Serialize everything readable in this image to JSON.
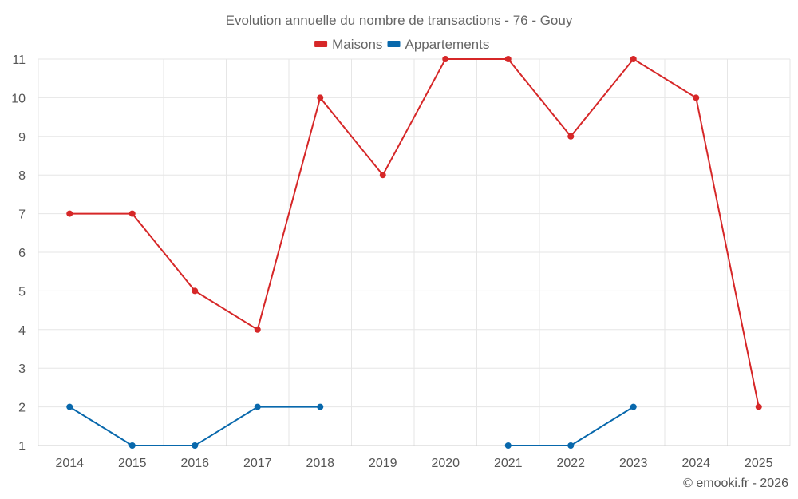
{
  "chart_data": {
    "type": "line",
    "title": "Evolution annuelle du nombre de transactions - 76 - Gouy",
    "categories": [
      "2014",
      "2015",
      "2016",
      "2017",
      "2018",
      "2019",
      "2020",
      "2021",
      "2022",
      "2023",
      "2024",
      "2025"
    ],
    "ylim": [
      1,
      11
    ],
    "yticks": [
      1,
      2,
      3,
      4,
      5,
      6,
      7,
      8,
      9,
      10,
      11
    ],
    "grid": true,
    "legend_position": "top-center",
    "series": [
      {
        "name": "Maisons",
        "color": "#d62728",
        "values": [
          7,
          7,
          5,
          4,
          10,
          8,
          11,
          11,
          9,
          11,
          10,
          2
        ]
      },
      {
        "name": "Appartements",
        "color": "#0868ac",
        "values": [
          2,
          1,
          1,
          2,
          2,
          null,
          null,
          1,
          1,
          2,
          null,
          null
        ]
      }
    ],
    "xlabel": "",
    "ylabel": ""
  },
  "credit": "© emooki.fr - 2026"
}
